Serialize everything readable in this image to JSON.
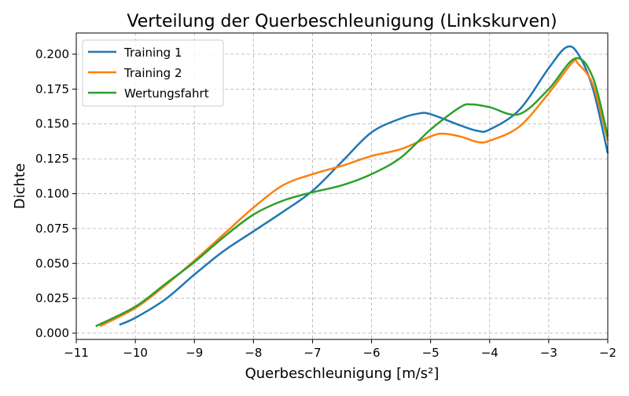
{
  "chart_data": {
    "type": "line",
    "title": "Verteilung der Querbeschleunigung (Linkskurven)",
    "xlabel": "Querbeschleunigung [m/s²]",
    "ylabel": "Dichte",
    "xlim": [
      -11,
      -2
    ],
    "ylim": [
      -0.0045,
      0.2152
    ],
    "xticks": [
      -11,
      -10,
      -9,
      -8,
      -7,
      -6,
      -5,
      -4,
      -3,
      -2
    ],
    "yticks": [
      "0.000",
      "0.025",
      "0.050",
      "0.075",
      "0.100",
      "0.125",
      "0.150",
      "0.175",
      "0.200"
    ],
    "grid": true,
    "legend_position": "top-left",
    "series": [
      {
        "name": "Training 1",
        "color": "#1f77b4",
        "x": [
          -10.27,
          -10,
          -9.5,
          -9,
          -8.5,
          -8,
          -7.5,
          -7,
          -6.5,
          -6,
          -5.5,
          -5.2,
          -5,
          -4.5,
          -4.2,
          -4,
          -3.5,
          -3,
          -2.7,
          -2.5,
          -2.25,
          -2
        ],
        "y": [
          0.006,
          0.011,
          0.024,
          0.042,
          0.059,
          0.073,
          0.087,
          0.102,
          0.123,
          0.144,
          0.154,
          0.1575,
          0.157,
          0.149,
          0.145,
          0.146,
          0.16,
          0.19,
          0.205,
          0.2,
          0.175,
          0.129
        ]
      },
      {
        "name": "Training 2",
        "color": "#ff7f0e",
        "x": [
          -10.6,
          -10,
          -9.5,
          -9,
          -8.5,
          -8,
          -7.5,
          -7,
          -6.5,
          -6,
          -5.5,
          -5,
          -4.8,
          -4.5,
          -4.2,
          -4,
          -3.5,
          -3,
          -2.6,
          -2.5,
          -2.25,
          -2
        ],
        "y": [
          0.005,
          0.018,
          0.034,
          0.052,
          0.071,
          0.09,
          0.106,
          0.114,
          0.12,
          0.127,
          0.132,
          0.141,
          0.143,
          0.141,
          0.137,
          0.138,
          0.148,
          0.172,
          0.194,
          0.193,
          0.178,
          0.138
        ]
      },
      {
        "name": "Wertungsfahrt",
        "color": "#2ca02c",
        "x": [
          -10.67,
          -10,
          -9.5,
          -9,
          -8.5,
          -8,
          -7.5,
          -7,
          -6.5,
          -6,
          -5.5,
          -5,
          -4.5,
          -4.3,
          -4,
          -3.5,
          -3,
          -2.55,
          -2.25,
          -2
        ],
        "y": [
          0.005,
          0.019,
          0.035,
          0.051,
          0.069,
          0.085,
          0.095,
          0.101,
          0.106,
          0.114,
          0.126,
          0.146,
          0.162,
          0.164,
          0.162,
          0.157,
          0.175,
          0.197,
          0.183,
          0.141
        ]
      }
    ]
  }
}
